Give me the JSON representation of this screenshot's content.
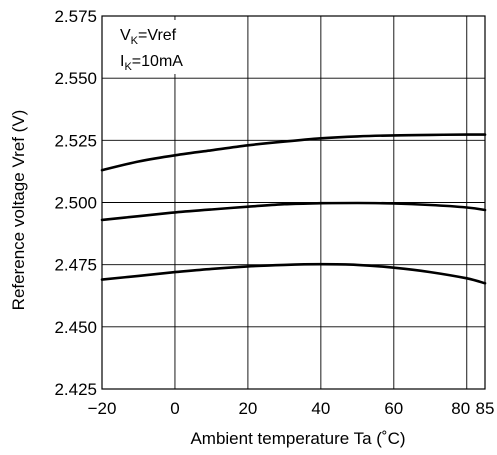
{
  "chart_data": {
    "type": "line",
    "xlabel": "Ambient temperature  Ta (˚C)",
    "ylabel": "Reference voltage  Vref (V)",
    "xlim": [
      -20,
      85
    ],
    "ylim": [
      2.425,
      2.575
    ],
    "x_ticks": [
      -20,
      0,
      20,
      40,
      60,
      80,
      85
    ],
    "x_tick_labels": [
      "−20",
      "0",
      "20",
      "40",
      "60",
      "80",
      "85"
    ],
    "y_ticks": [
      2.425,
      2.45,
      2.475,
      2.5,
      2.525,
      2.55,
      2.575
    ],
    "y_tick_labels": [
      "2.425",
      "2.450",
      "2.475",
      "2.500",
      "2.525",
      "2.550",
      "2.575"
    ],
    "grid": true,
    "legend": null,
    "annotations": {
      "line1": {
        "main": "V",
        "sub": "K",
        "rest": "=Vref"
      },
      "line2": {
        "main": "I",
        "sub": "K",
        "rest": "=10mA"
      }
    },
    "series": [
      {
        "x": [
          -20,
          -10,
          0,
          10,
          20,
          30,
          40,
          50,
          60,
          70,
          80,
          85
        ],
        "y": [
          2.513,
          2.5165,
          2.519,
          2.521,
          2.523,
          2.5245,
          2.5258,
          2.5266,
          2.527,
          2.5272,
          2.5273,
          2.5273
        ]
      },
      {
        "x": [
          -20,
          -10,
          0,
          10,
          20,
          30,
          40,
          50,
          60,
          70,
          80,
          85
        ],
        "y": [
          2.493,
          2.4945,
          2.496,
          2.4972,
          2.4983,
          2.4993,
          2.4997,
          2.4998,
          2.4996,
          2.499,
          2.498,
          2.497
        ]
      },
      {
        "x": [
          -20,
          -10,
          0,
          10,
          20,
          30,
          40,
          50,
          60,
          70,
          80,
          85
        ],
        "y": [
          2.469,
          2.4705,
          2.472,
          2.4733,
          2.4743,
          2.4749,
          2.4752,
          2.4749,
          2.4738,
          2.472,
          2.4695,
          2.4675
        ]
      }
    ]
  }
}
